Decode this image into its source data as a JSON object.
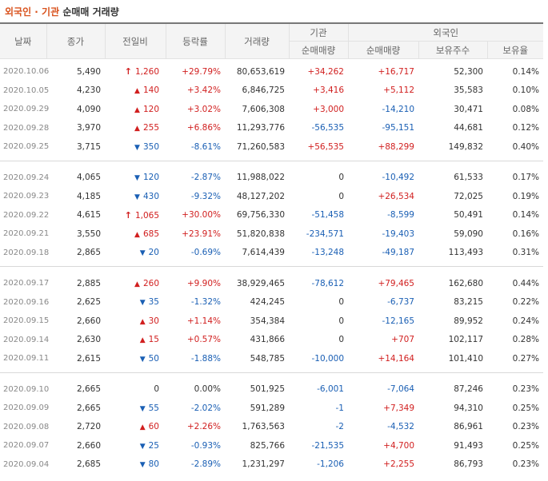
{
  "title": {
    "part1": "외국인 · 기관",
    "part2": "순매매 거래량"
  },
  "headers": {
    "date": "날짜",
    "close": "종가",
    "change": "전일비",
    "rate": "등락률",
    "volume": "거래량",
    "institution": "기관",
    "foreign": "외국인",
    "inst_net": "순매매량",
    "foreign_net": "순매매량",
    "holdings": "보유주수",
    "holding_ratio": "보유율"
  },
  "colors": {
    "up": "#d11f1f",
    "down": "#1a5fb4",
    "accent": "#d9531e"
  },
  "groups": [
    [
      {
        "date": "2020.10.06",
        "close": "5,490",
        "dir": "limit-up",
        "change": "1,260",
        "rate": "+29.79%",
        "volume": "80,653,619",
        "inst": "+34,262",
        "foreign": "+16,717",
        "holdings": "52,300",
        "ratio": "0.14%"
      },
      {
        "date": "2020.10.05",
        "close": "4,230",
        "dir": "up",
        "change": "140",
        "rate": "+3.42%",
        "volume": "6,846,725",
        "inst": "+3,416",
        "foreign": "+5,112",
        "holdings": "35,583",
        "ratio": "0.10%"
      },
      {
        "date": "2020.09.29",
        "close": "4,090",
        "dir": "up",
        "change": "120",
        "rate": "+3.02%",
        "volume": "7,606,308",
        "inst": "+3,000",
        "foreign": "-14,210",
        "holdings": "30,471",
        "ratio": "0.08%"
      },
      {
        "date": "2020.09.28",
        "close": "3,970",
        "dir": "up",
        "change": "255",
        "rate": "+6.86%",
        "volume": "11,293,776",
        "inst": "-56,535",
        "foreign": "-95,151",
        "holdings": "44,681",
        "ratio": "0.12%"
      },
      {
        "date": "2020.09.25",
        "close": "3,715",
        "dir": "down",
        "change": "350",
        "rate": "-8.61%",
        "volume": "71,260,583",
        "inst": "+56,535",
        "foreign": "+88,299",
        "holdings": "149,832",
        "ratio": "0.40%"
      }
    ],
    [
      {
        "date": "2020.09.24",
        "close": "4,065",
        "dir": "down",
        "change": "120",
        "rate": "-2.87%",
        "volume": "11,988,022",
        "inst": "0",
        "foreign": "-10,492",
        "holdings": "61,533",
        "ratio": "0.17%"
      },
      {
        "date": "2020.09.23",
        "close": "4,185",
        "dir": "down",
        "change": "430",
        "rate": "-9.32%",
        "volume": "48,127,202",
        "inst": "0",
        "foreign": "+26,534",
        "holdings": "72,025",
        "ratio": "0.19%"
      },
      {
        "date": "2020.09.22",
        "close": "4,615",
        "dir": "limit-up",
        "change": "1,065",
        "rate": "+30.00%",
        "volume": "69,756,330",
        "inst": "-51,458",
        "foreign": "-8,599",
        "holdings": "50,491",
        "ratio": "0.14%"
      },
      {
        "date": "2020.09.21",
        "close": "3,550",
        "dir": "up",
        "change": "685",
        "rate": "+23.91%",
        "volume": "51,820,838",
        "inst": "-234,571",
        "foreign": "-19,403",
        "holdings": "59,090",
        "ratio": "0.16%"
      },
      {
        "date": "2020.09.18",
        "close": "2,865",
        "dir": "down",
        "change": "20",
        "rate": "-0.69%",
        "volume": "7,614,439",
        "inst": "-13,248",
        "foreign": "-49,187",
        "holdings": "113,493",
        "ratio": "0.31%"
      }
    ],
    [
      {
        "date": "2020.09.17",
        "close": "2,885",
        "dir": "up",
        "change": "260",
        "rate": "+9.90%",
        "volume": "38,929,465",
        "inst": "-78,612",
        "foreign": "+79,465",
        "holdings": "162,680",
        "ratio": "0.44%"
      },
      {
        "date": "2020.09.16",
        "close": "2,625",
        "dir": "down",
        "change": "35",
        "rate": "-1.32%",
        "volume": "424,245",
        "inst": "0",
        "foreign": "-6,737",
        "holdings": "83,215",
        "ratio": "0.22%"
      },
      {
        "date": "2020.09.15",
        "close": "2,660",
        "dir": "up",
        "change": "30",
        "rate": "+1.14%",
        "volume": "354,384",
        "inst": "0",
        "foreign": "-12,165",
        "holdings": "89,952",
        "ratio": "0.24%"
      },
      {
        "date": "2020.09.14",
        "close": "2,630",
        "dir": "up",
        "change": "15",
        "rate": "+0.57%",
        "volume": "431,866",
        "inst": "0",
        "foreign": "+707",
        "holdings": "102,117",
        "ratio": "0.28%"
      },
      {
        "date": "2020.09.11",
        "close": "2,615",
        "dir": "down",
        "change": "50",
        "rate": "-1.88%",
        "volume": "548,785",
        "inst": "-10,000",
        "foreign": "+14,164",
        "holdings": "101,410",
        "ratio": "0.27%"
      }
    ],
    [
      {
        "date": "2020.09.10",
        "close": "2,665",
        "dir": "flat",
        "change": "0",
        "rate": "0.00%",
        "volume": "501,925",
        "inst": "-6,001",
        "foreign": "-7,064",
        "holdings": "87,246",
        "ratio": "0.23%"
      },
      {
        "date": "2020.09.09",
        "close": "2,665",
        "dir": "down",
        "change": "55",
        "rate": "-2.02%",
        "volume": "591,289",
        "inst": "-1",
        "foreign": "+7,349",
        "holdings": "94,310",
        "ratio": "0.25%"
      },
      {
        "date": "2020.09.08",
        "close": "2,720",
        "dir": "up",
        "change": "60",
        "rate": "+2.26%",
        "volume": "1,763,563",
        "inst": "-2",
        "foreign": "-4,532",
        "holdings": "86,961",
        "ratio": "0.23%"
      },
      {
        "date": "2020.09.07",
        "close": "2,660",
        "dir": "down",
        "change": "25",
        "rate": "-0.93%",
        "volume": "825,766",
        "inst": "-21,535",
        "foreign": "+4,700",
        "holdings": "91,493",
        "ratio": "0.25%"
      },
      {
        "date": "2020.09.04",
        "close": "2,685",
        "dir": "down",
        "change": "80",
        "rate": "-2.89%",
        "volume": "1,231,297",
        "inst": "-1,206",
        "foreign": "+2,255",
        "holdings": "86,793",
        "ratio": "0.23%"
      }
    ]
  ]
}
